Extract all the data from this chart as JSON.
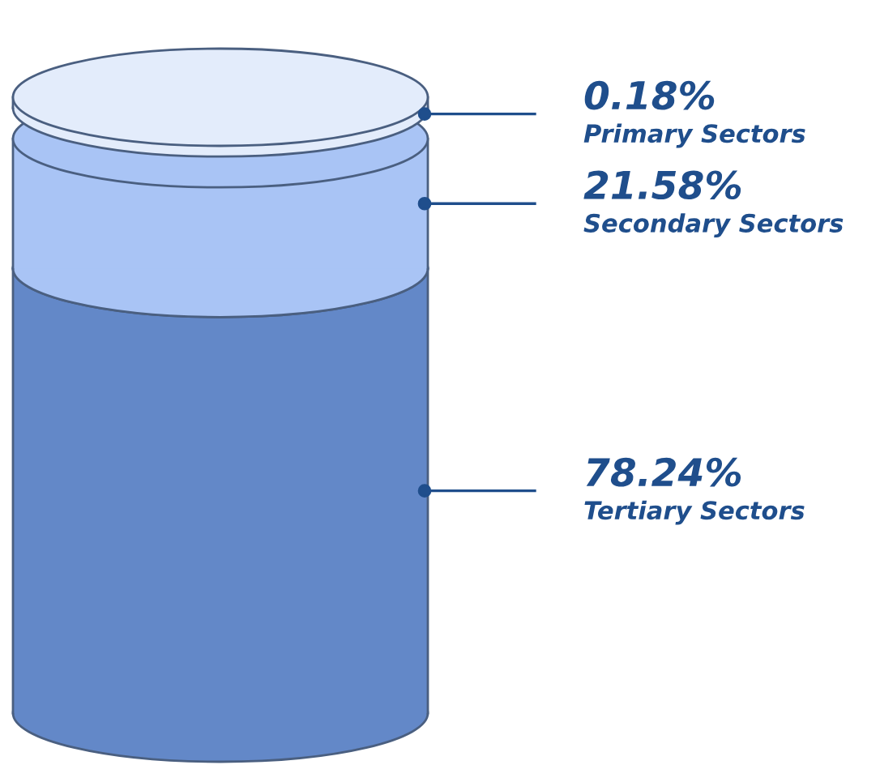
{
  "chart_data": {
    "type": "other",
    "categories": [
      "Primary Sectors",
      "Secondary Sectors",
      "Tertiary Sectors"
    ],
    "values": [
      0.18,
      21.58,
      78.24
    ],
    "value_labels": [
      "0.18%",
      "21.58%",
      "78.24%"
    ],
    "colors": [
      "#e3ecfb",
      "#a9c4f5",
      "#6388c8"
    ]
  }
}
